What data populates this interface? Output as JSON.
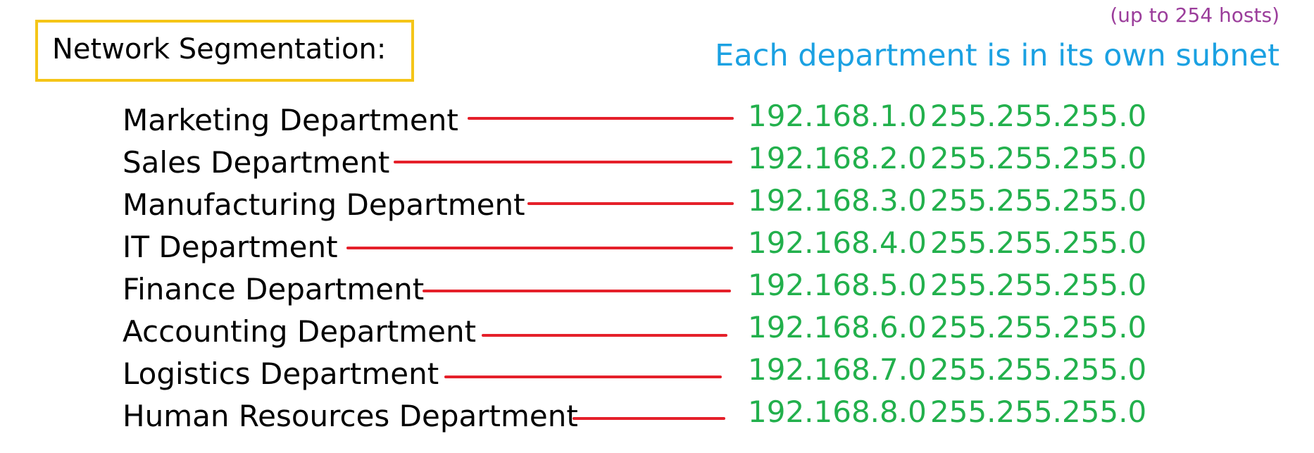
{
  "title": "Network Segmentation:",
  "hosts_note": "(up to 254 hosts)",
  "subnet_heading": "Each department is in its own subnet",
  "colors": {
    "title_border": "#f5c518",
    "department_text": "#000000",
    "connector": "#e5202a",
    "address_text": "#22b04c",
    "heading_text": "#1ba1e2",
    "note_text": "#9b3d9b"
  },
  "departments": [
    {
      "name": "Marketing Department",
      "network": "192.168.1.0",
      "mask": "255.255.255.0"
    },
    {
      "name": "Sales Department",
      "network": "192.168.2.0",
      "mask": "255.255.255.0"
    },
    {
      "name": "Manufacturing Department",
      "network": "192.168.3.0",
      "mask": "255.255.255.0"
    },
    {
      "name": "IT Department",
      "network": "192.168.4.0",
      "mask": "255.255.255.0"
    },
    {
      "name": "Finance Department",
      "network": "192.168.5.0",
      "mask": "255.255.255.0"
    },
    {
      "name": "Accounting Department",
      "network": "192.168.6.0",
      "mask": "255.255.255.0"
    },
    {
      "name": "Logistics Department",
      "network": "192.168.7.0",
      "mask": "255.255.255.0"
    },
    {
      "name": "Human Resources Department",
      "network": "192.168.8.0",
      "mask": "255.255.255.0"
    }
  ]
}
